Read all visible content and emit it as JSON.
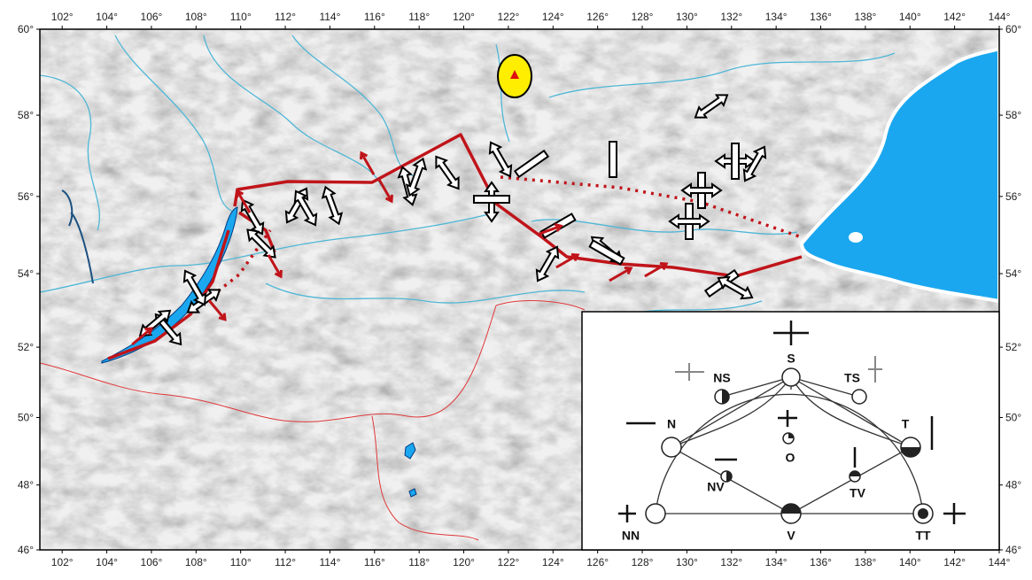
{
  "map": {
    "xlim": [
      101,
      144
    ],
    "ylim": [
      46,
      60
    ],
    "xticks": [
      {
        "value": 102,
        "label": "102°"
      },
      {
        "value": 104,
        "label": "104°"
      },
      {
        "value": 106,
        "label": "106°"
      },
      {
        "value": 108,
        "label": "108°"
      },
      {
        "value": 110,
        "label": "110°"
      },
      {
        "value": 112,
        "label": "112°"
      },
      {
        "value": 114,
        "label": "114°"
      },
      {
        "value": 116,
        "label": "116°"
      },
      {
        "value": 118,
        "label": "118°"
      },
      {
        "value": 120,
        "label": "120°"
      },
      {
        "value": 122,
        "label": "122°"
      },
      {
        "value": 124,
        "label": "124°"
      },
      {
        "value": 126,
        "label": "126°"
      },
      {
        "value": 128,
        "label": "128°"
      },
      {
        "value": 130,
        "label": "130°"
      },
      {
        "value": 132,
        "label": "132°"
      },
      {
        "value": 134,
        "label": "134°"
      },
      {
        "value": 136,
        "label": "136°"
      },
      {
        "value": 138,
        "label": "138°"
      },
      {
        "value": 140,
        "label": "140°"
      },
      {
        "value": 142,
        "label": "142°"
      },
      {
        "value": 144,
        "label": "144°"
      }
    ],
    "yticks": [
      {
        "value": 46,
        "label": "46°"
      },
      {
        "value": 48,
        "label": "48°"
      },
      {
        "value": 50,
        "label": "50°"
      },
      {
        "value": 52,
        "label": "52°"
      },
      {
        "value": 54,
        "label": "54°"
      },
      {
        "value": 56,
        "label": "56°"
      },
      {
        "value": 58,
        "label": "58°"
      },
      {
        "value": 60,
        "label": "60°"
      }
    ]
  },
  "inset": {
    "labels": [
      "NS",
      "S",
      "TS",
      "N",
      "T",
      "O",
      "NV",
      "TV",
      "NN",
      "V",
      "TT"
    ]
  }
}
